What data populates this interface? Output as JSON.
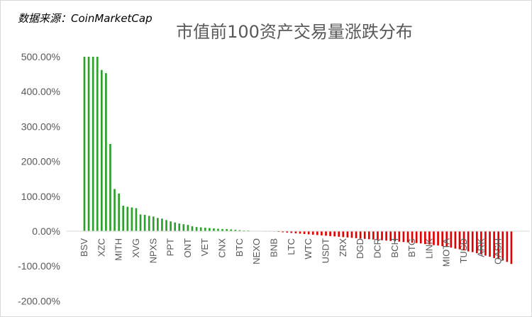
{
  "header": {
    "source": "数据来源：CoinMarketCap",
    "title": "市值前100资产交易量涨跌分布"
  },
  "colors": {
    "up": "#2ca02c",
    "down": "#e00000",
    "axis": "#d9d9d9",
    "text": "#595959"
  },
  "chart_data": {
    "type": "bar",
    "title": "市值前100资产交易量涨跌分布",
    "xlabel": "",
    "ylabel": "",
    "ylim": [
      -200,
      500
    ],
    "y_unit": "%",
    "yticks": [
      "500.00%",
      "400.00%",
      "300.00%",
      "200.00%",
      "100.00%",
      "0.00%",
      "-100.00%",
      "-200.00%"
    ],
    "grid": false,
    "legend": "none",
    "visible_x_labels": [
      "BSV",
      "XZC",
      "MITH",
      "XVG",
      "NPXS",
      "PPT",
      "ONT",
      "VET",
      "CNX",
      "BTC",
      "NEXO",
      "BNB",
      "LTC",
      "WTC",
      "USDT",
      "ZRX",
      "DGD",
      "DCR",
      "BCH",
      "BTG",
      "LINK",
      "MIOTA",
      "TUSD",
      "ARK",
      "QASH"
    ],
    "values": [
      500,
      500,
      500,
      500,
      462,
      453,
      250,
      121,
      108,
      73,
      70,
      68,
      66,
      48,
      47,
      44,
      42,
      38,
      36,
      32,
      28,
      25,
      22,
      20,
      18,
      14,
      12,
      11,
      10,
      9,
      8,
      7,
      6,
      6,
      5,
      4,
      3,
      2,
      2,
      1,
      1,
      1,
      0,
      0,
      -1,
      -2,
      -3,
      -4,
      -5,
      -6,
      -7,
      -8,
      -9,
      -10,
      -11,
      -12,
      -13,
      -14,
      -15,
      -16,
      -17,
      -18,
      -19,
      -20,
      -21,
      -22,
      -23,
      -24,
      -25,
      -26,
      -27,
      -28,
      -29,
      -30,
      -31,
      -32,
      -33,
      -34,
      -35,
      -37,
      -38,
      -40,
      -41,
      -43,
      -45,
      -47,
      -50,
      -52,
      -55,
      -58,
      -60,
      -63,
      -66,
      -70,
      -73,
      -77,
      -80,
      -84,
      -88,
      -94
    ]
  }
}
